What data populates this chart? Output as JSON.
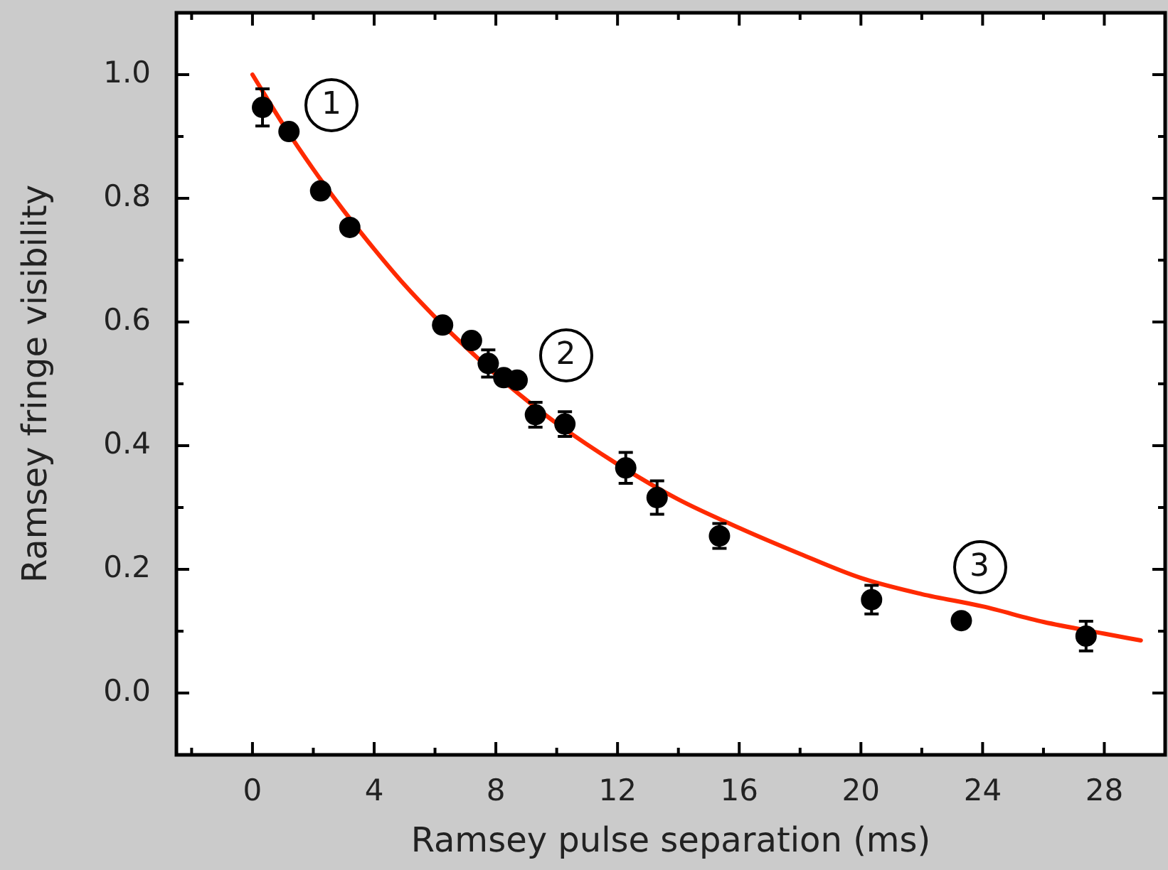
{
  "chart_data": {
    "type": "scatter",
    "xlabel": "Ramsey pulse separation (ms)",
    "ylabel": "Ramsey fringe visibility",
    "xlim": [
      -2.5,
      30
    ],
    "ylim": [
      -0.1,
      1.1
    ],
    "xticks": [
      {
        "value": -2,
        "label": null
      },
      0,
      {
        "value": 2,
        "label": null
      },
      4,
      {
        "value": 6,
        "label": null
      },
      8,
      {
        "value": 10,
        "label": null
      },
      12,
      {
        "value": 14,
        "label": null
      },
      16,
      {
        "value": 18,
        "label": null
      },
      20,
      {
        "value": 22,
        "label": null
      },
      24,
      {
        "value": 26,
        "label": null
      },
      28
    ],
    "yticks": [
      {
        "value": 0,
        "label": "0.0"
      },
      {
        "value": 0.1,
        "label": null
      },
      0.2,
      {
        "value": 0.3,
        "label": null
      },
      0.4,
      {
        "value": 0.5,
        "label": null
      },
      0.6,
      {
        "value": 0.7,
        "label": null
      },
      0.8,
      {
        "value": 0.9,
        "label": null
      },
      {
        "value": 1,
        "label": "1.0"
      }
    ],
    "marker": "circle",
    "series": [
      {
        "type": "scatter",
        "color": "#000000",
        "x": [
          0.33,
          1.2,
          2.24,
          3.2,
          6.25,
          7.2,
          7.75,
          8.26,
          8.7,
          9.3,
          10.27,
          12.27,
          13.3,
          15.35,
          20.35,
          23.3,
          27.4
        ],
        "values": [
          0.947,
          0.908,
          0.812,
          0.753,
          0.595,
          0.57,
          0.533,
          0.51,
          0.506,
          0.45,
          0.435,
          0.364,
          0.316,
          0.254,
          0.151,
          0.117,
          0.092
        ],
        "errors": [
          0.03,
          null,
          null,
          null,
          null,
          null,
          0.022,
          null,
          null,
          0.02,
          0.02,
          0.025,
          0.027,
          0.02,
          0.023,
          null,
          0.024
        ]
      },
      {
        "type": "line",
        "color": "#ff2a00",
        "marker": "none",
        "x": [
          0,
          1,
          2,
          3,
          4,
          5,
          6,
          7,
          8,
          9,
          10,
          12,
          14,
          16,
          18,
          20,
          22,
          24,
          26,
          28,
          29.2
        ],
        "values": [
          1.0,
          0.92,
          0.847,
          0.78,
          0.718,
          0.66,
          0.608,
          0.56,
          0.515,
          0.474,
          0.436,
          0.37,
          0.313,
          0.267,
          0.225,
          0.186,
          0.16,
          0.14,
          0.115,
          0.096,
          0.085
        ]
      }
    ],
    "annotations": [
      {
        "text": "1",
        "x": 2.6,
        "y": 0.95
      },
      {
        "text": "2",
        "x": 10.3,
        "y": 0.547
      },
      {
        "text": "3",
        "x": 23.9,
        "y": 0.204
      }
    ]
  }
}
